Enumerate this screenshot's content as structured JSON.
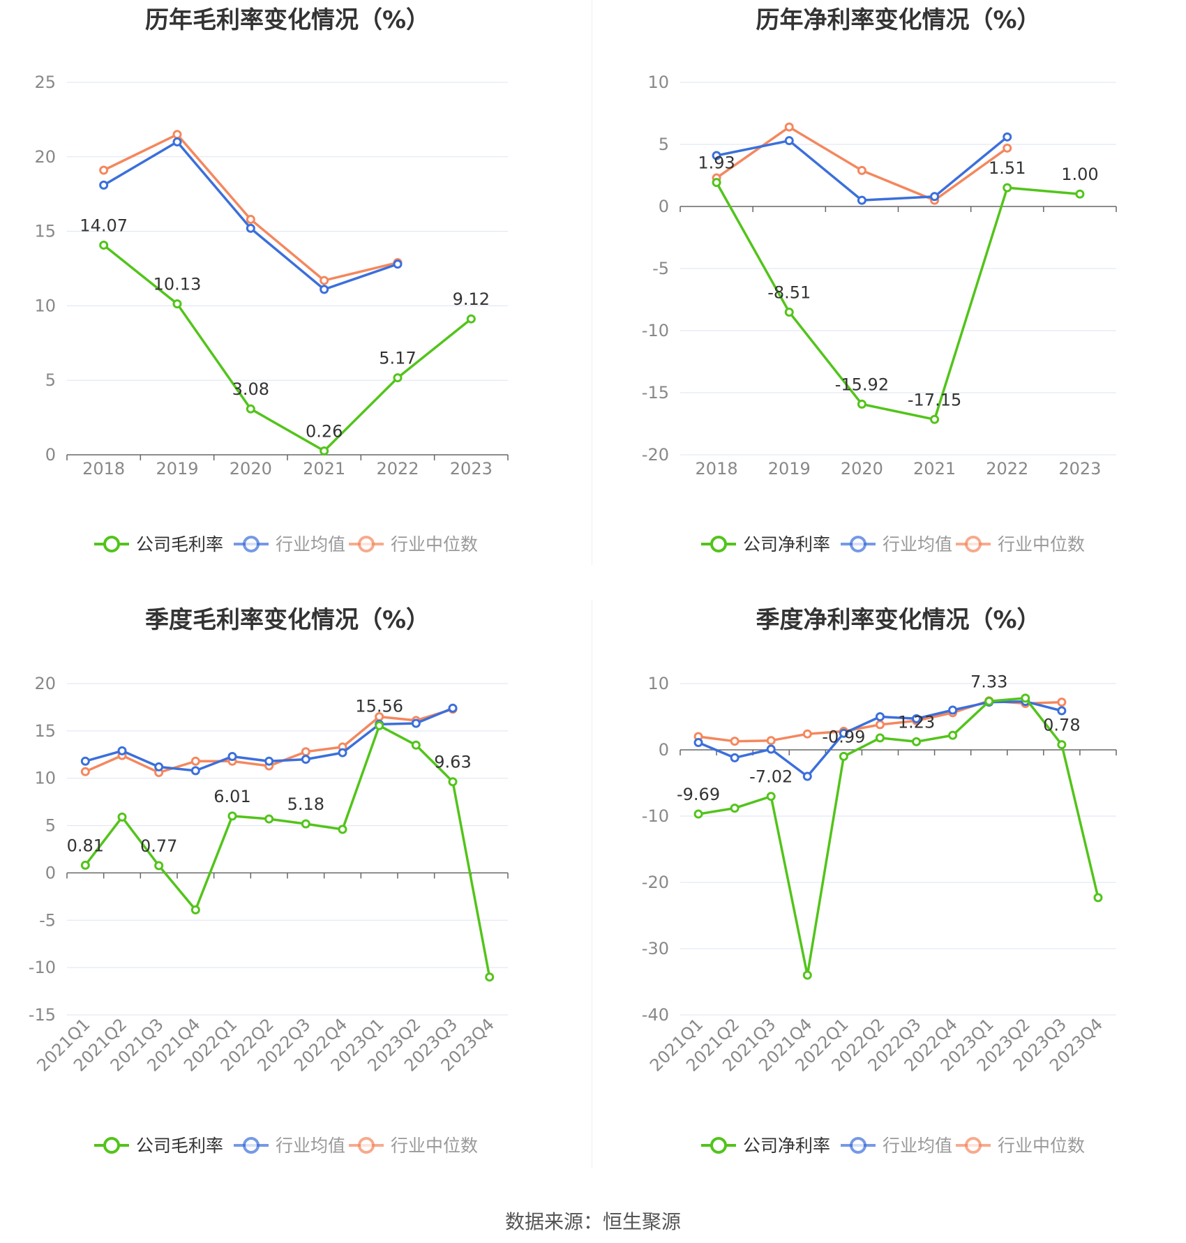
{
  "source_text": "数据来源：恒生聚源",
  "colors": {
    "company": "#52c41a",
    "avg": "#3b6fdb",
    "median": "#f4875e",
    "grid": "#dde3f0",
    "axis": "#666666",
    "tick": "#888888"
  },
  "chart_data": [
    {
      "type": "line",
      "title": "历年毛利率变化情况（%）",
      "categories": [
        "2018",
        "2019",
        "2020",
        "2021",
        "2022",
        "2023"
      ],
      "ylim": [
        0,
        25
      ],
      "ystep": 5,
      "grid": true,
      "legend": "bottom",
      "series": [
        {
          "name": "公司毛利率",
          "color": "#52c41a",
          "values": [
            14.07,
            10.13,
            3.08,
            0.26,
            5.17,
            9.12
          ],
          "labels": [
            "14.07",
            "10.13",
            "3.08",
            "0.26",
            "5.17",
            "9.12"
          ]
        },
        {
          "name": "行业均值",
          "color": "#3b6fdb",
          "values": [
            18.1,
            21.0,
            15.2,
            11.1,
            12.8,
            null
          ]
        },
        {
          "name": "行业中位数",
          "color": "#f4875e",
          "values": [
            19.1,
            21.5,
            15.8,
            11.7,
            12.9,
            null
          ]
        }
      ]
    },
    {
      "type": "line",
      "title": "历年净利率变化情况（%）",
      "categories": [
        "2018",
        "2019",
        "2020",
        "2021",
        "2022",
        "2023"
      ],
      "ylim": [
        -20,
        10
      ],
      "ystep": 5,
      "grid": true,
      "legend": "bottom",
      "series": [
        {
          "name": "公司净利率",
          "color": "#52c41a",
          "values": [
            1.93,
            -8.51,
            -15.92,
            -17.15,
            1.51,
            1.0
          ],
          "labels": [
            "1.93",
            "-8.51",
            "-15.92",
            "-17.15",
            "1.51",
            "1.00"
          ]
        },
        {
          "name": "行业均值",
          "color": "#3b6fdb",
          "values": [
            4.1,
            5.3,
            0.5,
            0.8,
            5.6,
            null
          ]
        },
        {
          "name": "行业中位数",
          "color": "#f4875e",
          "values": [
            2.3,
            6.4,
            2.9,
            0.5,
            4.7,
            null
          ]
        }
      ]
    },
    {
      "type": "line",
      "title": "季度毛利率变化情况（%）",
      "categories": [
        "2021Q1",
        "2021Q2",
        "2021Q3",
        "2021Q4",
        "2022Q1",
        "2022Q2",
        "2022Q3",
        "2022Q4",
        "2023Q1",
        "2023Q2",
        "2023Q3",
        "2023Q4"
      ],
      "ylim": [
        -15,
        20
      ],
      "ystep": 5,
      "grid": true,
      "legend": "bottom",
      "series": [
        {
          "name": "公司毛利率",
          "color": "#52c41a",
          "values": [
            0.81,
            5.9,
            0.77,
            -3.9,
            6.01,
            5.7,
            5.18,
            4.6,
            15.56,
            13.5,
            9.63,
            -11.0
          ],
          "labels": [
            "0.81",
            "",
            "0.77",
            "",
            "6.01",
            "",
            "5.18",
            "",
            "15.56",
            "",
            "9.63",
            ""
          ]
        },
        {
          "name": "行业均值",
          "color": "#3b6fdb",
          "values": [
            11.8,
            12.9,
            11.2,
            10.8,
            12.3,
            11.8,
            12.0,
            12.7,
            15.7,
            15.8,
            17.4,
            null
          ]
        },
        {
          "name": "行业中位数",
          "color": "#f4875e",
          "values": [
            10.7,
            12.4,
            10.6,
            11.8,
            11.8,
            11.3,
            12.8,
            13.3,
            16.5,
            16.1,
            17.3,
            null
          ]
        }
      ]
    },
    {
      "type": "line",
      "title": "季度净利率变化情况（%）",
      "categories": [
        "2021Q1",
        "2021Q2",
        "2021Q3",
        "2021Q4",
        "2022Q1",
        "2022Q2",
        "2022Q3",
        "2022Q4",
        "2023Q1",
        "2023Q2",
        "2023Q3",
        "2023Q4"
      ],
      "ylim": [
        -40,
        10
      ],
      "ystep": 10,
      "grid": true,
      "legend": "bottom",
      "series": [
        {
          "name": "公司净利率",
          "color": "#52c41a",
          "values": [
            -9.69,
            -8.8,
            -7.02,
            -34.0,
            -0.99,
            1.8,
            1.23,
            2.2,
            7.33,
            7.8,
            0.78,
            -22.3
          ],
          "labels": [
            "-9.69",
            "",
            "-7.02",
            "",
            "-0.99",
            "",
            "1.23",
            "",
            "7.33",
            "",
            "0.78",
            ""
          ]
        },
        {
          "name": "行业均值",
          "color": "#3b6fdb",
          "values": [
            1.1,
            -1.2,
            0.1,
            -4.0,
            2.5,
            5.0,
            4.7,
            6.0,
            7.2,
            7.3,
            5.9,
            null
          ]
        },
        {
          "name": "行业中位数",
          "color": "#f4875e",
          "values": [
            2.0,
            1.3,
            1.4,
            2.4,
            2.8,
            3.8,
            4.4,
            5.6,
            7.4,
            7.0,
            7.2,
            null
          ]
        }
      ]
    }
  ]
}
